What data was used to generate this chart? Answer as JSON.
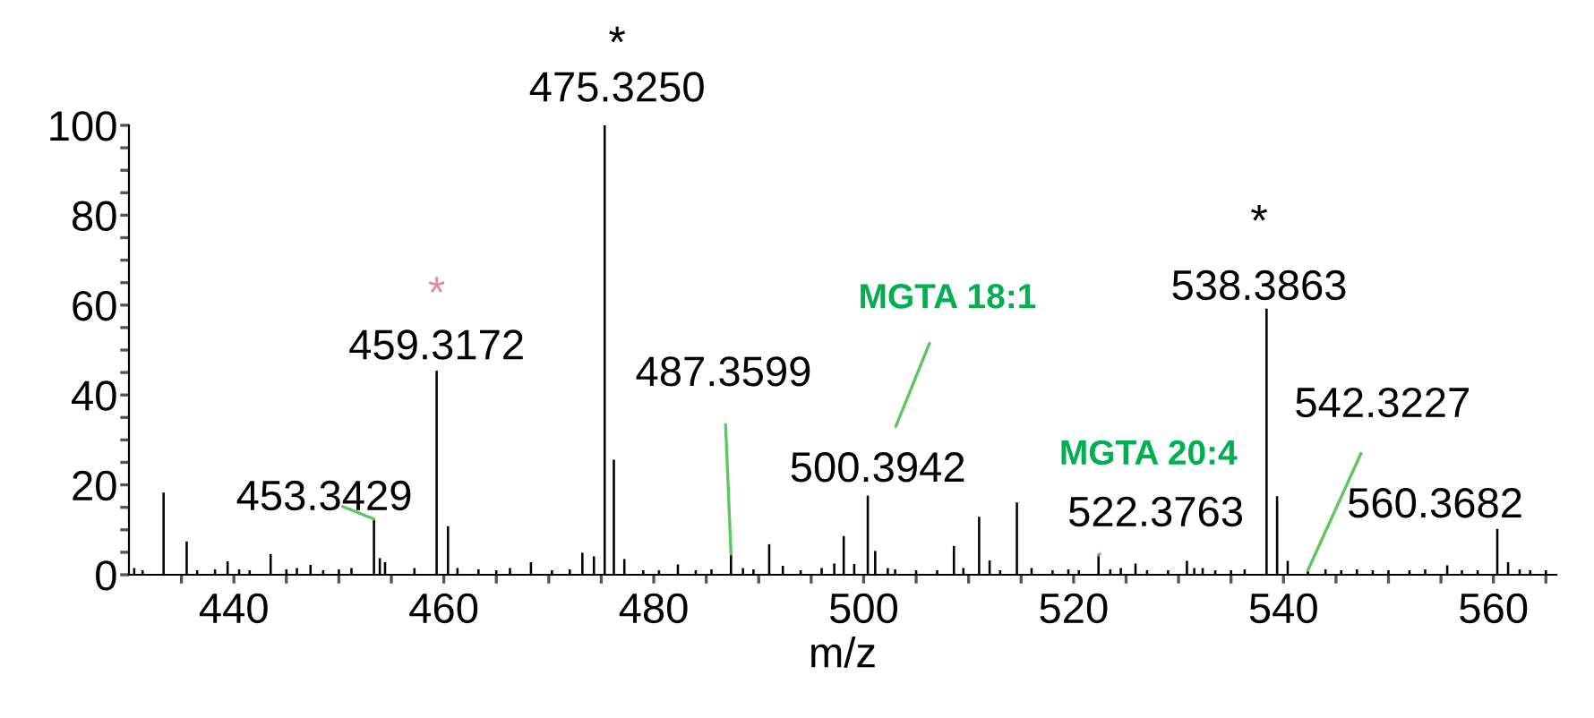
{
  "chart_data": {
    "type": "bar",
    "xlabel": "m/z",
    "color": "#000000",
    "grid": false,
    "x": [
      430.5,
      431.3,
      433.3,
      435.5,
      436.5,
      438.2,
      439.4,
      440.5,
      441.5,
      443.5,
      445.0,
      446.0,
      447.3,
      448.5,
      450.0,
      451.2,
      453.3429,
      453.9,
      454.4,
      457.2,
      459.3172,
      460.4,
      461.3,
      463.3,
      465.0,
      466.3,
      468.3,
      470.3,
      472.0,
      473.2,
      474.3,
      475.325,
      476.2,
      477.2,
      479.0,
      480.5,
      482.3,
      484.0,
      485.5,
      487.3599,
      488.5,
      489.5,
      491.0,
      492.3,
      494.0,
      496.0,
      497.2,
      498.1,
      499.1,
      500.3942,
      501.1,
      502.3,
      503.0,
      505.0,
      507.0,
      508.6,
      509.5,
      511.0,
      512.0,
      513.0,
      514.6,
      516.0,
      518.0,
      519.5,
      520.5,
      522.3763,
      523.5,
      524.5,
      525.9,
      527.0,
      529.0,
      530.8,
      531.5,
      532.3,
      533.5,
      535.0,
      536.3,
      538.3863,
      539.39,
      540.4,
      542.3227,
      544.0,
      545.5,
      547.0,
      548.5,
      550.0,
      552.0,
      553.5,
      555.6,
      557.0,
      558.5,
      560.3682,
      561.4,
      562.5,
      563.5,
      565.0
    ],
    "values": [
      1.5,
      1.0,
      18.3,
      7.4,
      1.0,
      1.2,
      3.0,
      1.2,
      1.0,
      4.6,
      1.2,
      1.5,
      2.2,
      1.0,
      1.2,
      1.5,
      12.4,
      3.7,
      2.8,
      1.5,
      45.4,
      10.8,
      1.5,
      1.2,
      1.0,
      1.5,
      2.8,
      1.0,
      1.2,
      4.9,
      4.1,
      100,
      25.6,
      3.5,
      1.0,
      1.0,
      2.3,
      1.0,
      1.2,
      4.6,
      1.5,
      1.2,
      6.8,
      2.0,
      1.0,
      1.5,
      2.5,
      8.6,
      2.4,
      17.6,
      5.3,
      1.5,
      1.2,
      1.0,
      1.0,
      6.4,
      1.5,
      12.9,
      3.2,
      1.0,
      16.1,
      1.5,
      1.0,
      1.2,
      1.0,
      4.4,
      1.2,
      1.5,
      2.5,
      1.0,
      1.0,
      3.1,
      1.5,
      1.5,
      1.0,
      1.0,
      1.2,
      59.2,
      17.5,
      3.1,
      1.0,
      1.2,
      1.0,
      1.2,
      1.0,
      1.0,
      1.0,
      1.2,
      2.1,
      1.0,
      1.0,
      10.2,
      2.8,
      1.2,
      1.0,
      1.0
    ],
    "xlim": [
      430,
      566
    ],
    "xticks": [
      {
        "value": 435,
        "label": null
      },
      440,
      {
        "value": 445,
        "label": null
      },
      {
        "value": 450,
        "label": null
      },
      {
        "value": 455,
        "label": null
      },
      460,
      {
        "value": 465,
        "label": null
      },
      {
        "value": 470,
        "label": null
      },
      {
        "value": 475,
        "label": null
      },
      480,
      {
        "value": 485,
        "label": null
      },
      {
        "value": 490,
        "label": null
      },
      {
        "value": 495,
        "label": null
      },
      500,
      {
        "value": 505,
        "label": null
      },
      {
        "value": 510,
        "label": null
      },
      {
        "value": 515,
        "label": null
      },
      520,
      {
        "value": 525,
        "label": null
      },
      {
        "value": 530,
        "label": null
      },
      {
        "value": 535,
        "label": null
      },
      540,
      {
        "value": 545,
        "label": null
      },
      {
        "value": 550,
        "label": null
      },
      {
        "value": 555,
        "label": null
      },
      560,
      {
        "value": 565,
        "label": null
      }
    ],
    "ylim": [
      0,
      100
    ],
    "yticks": [
      0,
      {
        "value": 5,
        "label": null
      },
      {
        "value": 10,
        "label": null
      },
      {
        "value": 15,
        "label": null
      },
      20,
      {
        "value": 25,
        "label": null
      },
      {
        "value": 30,
        "label": null
      },
      {
        "value": 35,
        "label": null
      },
      40,
      {
        "value": 45,
        "label": null
      },
      {
        "value": 50,
        "label": null
      },
      {
        "value": 55,
        "label": null
      },
      60,
      {
        "value": 65,
        "label": null
      },
      {
        "value": 70,
        "label": null
      },
      {
        "value": 75,
        "label": null
      },
      80,
      {
        "value": 85,
        "label": null
      },
      {
        "value": 90,
        "label": null
      },
      {
        "value": 95,
        "label": null
      },
      100
    ],
    "annotations": [
      "*",
      {
        "text": "475.3250",
        "x": 475.325,
        "y": 100
      },
      "*",
      {
        "text": "459.3172",
        "x": 459.3172,
        "y": 45.4
      },
      {
        "text": "453.3429",
        "x": 453.3429,
        "y": 12.4
      },
      {
        "text": "487.3599",
        "x": 487.3599,
        "y": 4.6
      },
      "MGTA 18:1",
      {
        "text": "500.3942",
        "x": 500.3942,
        "y": 17.6
      },
      "MGTA 20:4",
      {
        "text": "522.3763",
        "x": 522.3763,
        "y": 4.4
      },
      "*",
      {
        "text": "538.3863",
        "x": 538.3863,
        "y": 59.2
      },
      {
        "text": "542.3227",
        "x": 542.3227,
        "y": 1.0
      },
      {
        "text": "560.3682",
        "x": 560.3682,
        "y": 10.2
      }
    ]
  }
}
